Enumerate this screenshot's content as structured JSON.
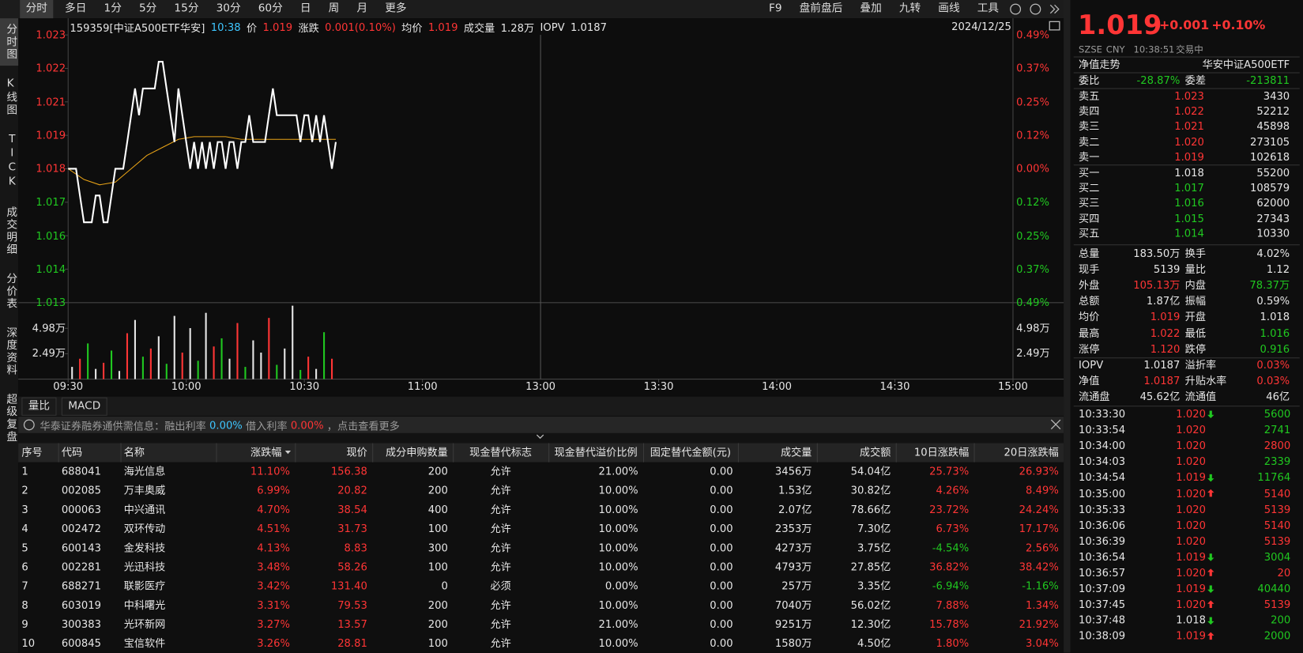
{
  "toolbar": {
    "periods": [
      "分时",
      "多日",
      "1分",
      "5分",
      "15分",
      "30分",
      "60分",
      "日",
      "周",
      "月",
      "更多"
    ],
    "tools": [
      "F9",
      "盘前盘后",
      "叠加",
      "九转",
      "画线",
      "工具"
    ]
  },
  "side_tabs": [
    "分时图",
    "K线图",
    "TICK",
    "成交明细",
    "分价表",
    "深度资料",
    "超级复盘"
  ],
  "quote_line": {
    "code": "159359[中证A500ETF华安]",
    "time": "10:38",
    "price_label": "价",
    "price": "1.019",
    "change_label": "涨跌",
    "change": "0.001(0.10%)",
    "avg_label": "均价",
    "avg": "1.019",
    "volume_label": "成交量",
    "volume": "1.28万",
    "iopv_label": "IOPV",
    "iopv": "1.0187",
    "date": "2024/12/25"
  },
  "intraday": {
    "ylim": [
      1.013,
      1.023
    ],
    "yticks": [
      {
        "value": 1.023,
        "label": "1.023"
      },
      {
        "value": 1.02175,
        "label": "1.022"
      },
      {
        "value": 1.0205,
        "label": "1.021"
      },
      {
        "value": 1.01925,
        "label": "1.019"
      },
      {
        "value": 1.018,
        "label": "1.018"
      },
      {
        "value": 1.01675,
        "label": "1.017"
      },
      {
        "value": 1.0155,
        "label": "1.016"
      },
      {
        "value": 1.01425,
        "label": "1.014"
      },
      {
        "value": 1.013,
        "label": "1.013"
      }
    ],
    "pct_ticks": [
      "0.49%",
      "0.37%",
      "0.25%",
      "0.12%",
      "0.00%",
      "0.12%",
      "0.25%",
      "0.37%",
      "0.49%"
    ],
    "xlim": [
      0,
      240
    ],
    "xticks": [
      {
        "value": 0,
        "label": "09:30"
      },
      {
        "value": 30,
        "label": "10:00"
      },
      {
        "value": 60,
        "label": "10:30"
      },
      {
        "value": 90,
        "label": "11:00"
      },
      {
        "value": 120,
        "label": "13:00"
      },
      {
        "value": 150,
        "label": "13:30"
      },
      {
        "value": 180,
        "label": "14:00"
      },
      {
        "value": 210,
        "label": "14:30"
      },
      {
        "value": 240,
        "label": "15:00"
      }
    ],
    "price_color": "#ffffff",
    "avg_color": "#e8a317",
    "price": [
      1.018,
      1.018,
      1.018,
      1.017,
      1.016,
      1.016,
      1.016,
      1.017,
      1.017,
      1.016,
      1.016,
      1.017,
      1.018,
      1.018,
      1.018,
      1.019,
      1.02,
      1.021,
      1.02,
      1.021,
      1.021,
      1.021,
      1.021,
      1.022,
      1.022,
      1.021,
      1.02,
      1.019,
      1.021,
      1.02,
      1.019,
      1.018,
      1.019,
      1.018,
      1.019,
      1.018,
      1.019,
      1.018,
      1.019,
      1.019,
      1.018,
      1.019,
      1.019,
      1.018,
      1.019,
      1.019,
      1.02,
      1.019,
      1.019,
      1.019,
      1.019,
      1.02,
      1.021,
      1.02,
      1.02,
      1.02,
      1.02,
      1.02,
      1.02,
      1.019,
      1.02,
      1.02,
      1.019,
      1.02,
      1.019,
      1.02,
      1.019,
      1.018,
      1.019
    ],
    "avg_x": [
      0,
      4,
      8,
      12,
      16,
      20,
      24,
      28,
      32,
      36,
      40,
      44,
      48,
      52,
      56,
      60,
      64,
      68
    ],
    "avg": [
      1.018,
      1.0176,
      1.0174,
      1.0175,
      1.018,
      1.0185,
      1.0188,
      1.0191,
      1.0192,
      1.0192,
      1.0192,
      1.0191,
      1.0191,
      1.0191,
      1.0191,
      1.0191,
      1.0191,
      1.0191
    ],
    "volume_ylim": [
      0,
      7.5
    ],
    "volume_yticks": [
      {
        "value": 4.98,
        "label": "4.98万"
      },
      {
        "value": 2.49,
        "label": "2.49万"
      }
    ],
    "volume": [
      1.2,
      2.0,
      3.5,
      1.0,
      1.6,
      2.8,
      0.8,
      4.5,
      5.8,
      2.2,
      3.0,
      4.2,
      1.5,
      6.2,
      2.6,
      5.0,
      1.8,
      6.5,
      3.2,
      4.0,
      2.0,
      5.5,
      1.2,
      3.8,
      2.6,
      6.0,
      1.4,
      3.0,
      7.2,
      0.9,
      2.2,
      1.0,
      4.6,
      2.0
    ],
    "volume_tone": [
      "flat",
      "up",
      "down",
      "flat",
      "up",
      "down",
      "flat",
      "up",
      "flat",
      "down",
      "up",
      "flat",
      "down",
      "flat",
      "up",
      "flat",
      "down",
      "flat",
      "up",
      "down",
      "flat",
      "up",
      "down",
      "flat",
      "flat",
      "up",
      "down",
      "flat",
      "flat",
      "down",
      "up",
      "flat",
      "down",
      "up"
    ]
  },
  "indicator_tabs": [
    "量比",
    "MACD"
  ],
  "notice": {
    "text": "华泰证券融券通供需信息：融出利率",
    "lend_rate": "0.00%",
    "borrow_label": "借入利率",
    "borrow_rate": "0.00%",
    "more": "，点击查看更多"
  },
  "table": {
    "headers": [
      "序号",
      "代码",
      "名称",
      "涨跌幅",
      "现价",
      "成分申购数量",
      "现金替代标志",
      "现金替代溢价比例",
      "固定替代金额(元)",
      "成交量",
      "成交额",
      "10日涨跌幅",
      "20日涨跌幅"
    ],
    "rows": [
      [
        "1",
        "688041",
        "海光信息",
        "11.10%",
        "156.38",
        "200",
        "允许",
        "21.00%",
        "0.00",
        "3456万",
        "54.04亿",
        "25.73%",
        "26.93%"
      ],
      [
        "2",
        "002085",
        "万丰奥威",
        "6.99%",
        "20.82",
        "200",
        "允许",
        "10.00%",
        "0.00",
        "1.53亿",
        "30.82亿",
        "4.26%",
        "8.49%"
      ],
      [
        "3",
        "000063",
        "中兴通讯",
        "4.70%",
        "38.54",
        "400",
        "允许",
        "10.00%",
        "0.00",
        "2.07亿",
        "78.66亿",
        "23.72%",
        "24.24%"
      ],
      [
        "4",
        "002472",
        "双环传动",
        "4.51%",
        "31.73",
        "100",
        "允许",
        "10.00%",
        "0.00",
        "2353万",
        "7.30亿",
        "6.73%",
        "17.17%"
      ],
      [
        "5",
        "600143",
        "金发科技",
        "4.13%",
        "8.83",
        "300",
        "允许",
        "10.00%",
        "0.00",
        "4273万",
        "3.75亿",
        "-4.54%",
        "2.56%"
      ],
      [
        "6",
        "002281",
        "光迅科技",
        "3.48%",
        "58.26",
        "100",
        "允许",
        "10.00%",
        "0.00",
        "4793万",
        "27.85亿",
        "36.82%",
        "38.42%"
      ],
      [
        "7",
        "688271",
        "联影医疗",
        "3.42%",
        "131.40",
        "0",
        "必须",
        "0.00%",
        "0.00",
        "257万",
        "3.35亿",
        "-6.94%",
        "-1.16%"
      ],
      [
        "8",
        "603019",
        "中科曙光",
        "3.31%",
        "79.53",
        "200",
        "允许",
        "10.00%",
        "0.00",
        "7040万",
        "56.02亿",
        "7.88%",
        "1.34%"
      ],
      [
        "9",
        "300383",
        "光环新网",
        "3.27%",
        "13.57",
        "200",
        "允许",
        "21.00%",
        "0.00",
        "9251万",
        "12.30亿",
        "15.78%",
        "21.92%"
      ],
      [
        "10",
        "600845",
        "宝信软件",
        "3.26%",
        "28.81",
        "100",
        "允许",
        "10.00%",
        "0.00",
        "1580万",
        "4.50亿",
        "1.80%",
        "3.04%"
      ]
    ]
  },
  "quote_panel": {
    "price": "1.019",
    "change": "+0.001",
    "change_pct": "+0.10%",
    "exchange": "SZSE",
    "currency": "CNY",
    "time": "10:38:51",
    "status": "交易中",
    "nav_link": "净值走势",
    "name": "华安中证A500ETF",
    "ratio": [
      {
        "label": "委比",
        "value": "-28.87%",
        "tone": "down"
      },
      {
        "label": "委差",
        "value": "-213811",
        "tone": "down"
      }
    ],
    "asks": [
      {
        "label": "卖五",
        "price": "1.023",
        "volume": "3430",
        "tone": "up"
      },
      {
        "label": "卖四",
        "price": "1.022",
        "volume": "52212",
        "tone": "up"
      },
      {
        "label": "卖三",
        "price": "1.021",
        "volume": "45898",
        "tone": "up"
      },
      {
        "label": "卖二",
        "price": "1.020",
        "volume": "273105",
        "tone": "up"
      },
      {
        "label": "卖一",
        "price": "1.019",
        "volume": "102618",
        "tone": "up"
      }
    ],
    "bids": [
      {
        "label": "买一",
        "price": "1.018",
        "volume": "55200",
        "tone": "flat"
      },
      {
        "label": "买二",
        "price": "1.017",
        "volume": "108579",
        "tone": "down"
      },
      {
        "label": "买三",
        "price": "1.016",
        "volume": "62000",
        "tone": "down"
      },
      {
        "label": "买四",
        "price": "1.015",
        "volume": "27343",
        "tone": "down"
      },
      {
        "label": "买五",
        "price": "1.014",
        "volume": "10330",
        "tone": "down"
      }
    ],
    "stats": [
      [
        {
          "label": "总量",
          "value": "183.50万",
          "tone": "flat"
        },
        {
          "label": "换手",
          "value": "4.02%",
          "tone": "flat"
        }
      ],
      [
        {
          "label": "现手",
          "value": "5139",
          "tone": "flat"
        },
        {
          "label": "量比",
          "value": "1.12",
          "tone": "flat"
        }
      ],
      [
        {
          "label": "外盘",
          "value": "105.13万",
          "tone": "up"
        },
        {
          "label": "内盘",
          "value": "78.37万",
          "tone": "down"
        }
      ],
      [
        {
          "label": "总额",
          "value": "1.87亿",
          "tone": "flat"
        },
        {
          "label": "振幅",
          "value": "0.59%",
          "tone": "flat"
        }
      ],
      [
        {
          "label": "均价",
          "value": "1.019",
          "tone": "up"
        },
        {
          "label": "开盘",
          "value": "1.018",
          "tone": "flat"
        }
      ],
      [
        {
          "label": "最高",
          "value": "1.022",
          "tone": "up"
        },
        {
          "label": "最低",
          "value": "1.016",
          "tone": "down"
        }
      ],
      [
        {
          "label": "涨停",
          "value": "1.120",
          "tone": "up"
        },
        {
          "label": "跌停",
          "value": "0.916",
          "tone": "down"
        }
      ],
      [
        {
          "label": "IOPV",
          "value": "1.0187",
          "tone": "flat"
        },
        {
          "label": "溢折率",
          "value": "0.03%",
          "tone": "up"
        }
      ],
      [
        {
          "label": "净值",
          "value": "1.0187",
          "tone": "up"
        },
        {
          "label": "升贴水率",
          "value": "0.03%",
          "tone": "up"
        }
      ],
      [
        {
          "label": "流通盘",
          "value": "45.62亿",
          "tone": "flat"
        },
        {
          "label": "流通值",
          "value": "46亿",
          "tone": "flat"
        }
      ]
    ],
    "ticks": [
      {
        "time": "10:33:30",
        "price": "1.020",
        "volume": "5600",
        "price_tone": "up",
        "volume_tone": "down",
        "dir": "down"
      },
      {
        "time": "10:33:54",
        "price": "1.020",
        "volume": "2741",
        "price_tone": "up",
        "volume_tone": "down"
      },
      {
        "time": "10:34:00",
        "price": "1.020",
        "volume": "2800",
        "price_tone": "up",
        "volume_tone": "up"
      },
      {
        "time": "10:34:03",
        "price": "1.020",
        "volume": "2339",
        "price_tone": "up",
        "volume_tone": "down"
      },
      {
        "time": "10:34:54",
        "price": "1.019",
        "volume": "11764",
        "price_tone": "up",
        "volume_tone": "down",
        "dir": "down"
      },
      {
        "time": "10:35:00",
        "price": "1.020",
        "volume": "5140",
        "price_tone": "up",
        "volume_tone": "up",
        "dir": "up"
      },
      {
        "time": "10:35:33",
        "price": "1.020",
        "volume": "5139",
        "price_tone": "up",
        "volume_tone": "up"
      },
      {
        "time": "10:36:06",
        "price": "1.020",
        "volume": "5140",
        "price_tone": "up",
        "volume_tone": "up"
      },
      {
        "time": "10:36:39",
        "price": "1.020",
        "volume": "5139",
        "price_tone": "up",
        "volume_tone": "up"
      },
      {
        "time": "10:36:54",
        "price": "1.019",
        "volume": "3004",
        "price_tone": "up",
        "volume_tone": "down",
        "dir": "down"
      },
      {
        "time": "10:36:57",
        "price": "1.020",
        "volume": "20",
        "price_tone": "up",
        "volume_tone": "up",
        "dir": "up"
      },
      {
        "time": "10:37:09",
        "price": "1.019",
        "volume": "40440",
        "price_tone": "up",
        "volume_tone": "down",
        "dir": "down"
      },
      {
        "time": "10:37:45",
        "price": "1.020",
        "volume": "5139",
        "price_tone": "up",
        "volume_tone": "up",
        "dir": "up"
      },
      {
        "time": "10:37:48",
        "price": "1.018",
        "volume": "200",
        "price_tone": "flat",
        "volume_tone": "down",
        "dir": "down"
      },
      {
        "time": "10:38:09",
        "price": "1.019",
        "volume": "2000",
        "price_tone": "up",
        "volume_tone": "down",
        "dir": "up"
      }
    ]
  }
}
